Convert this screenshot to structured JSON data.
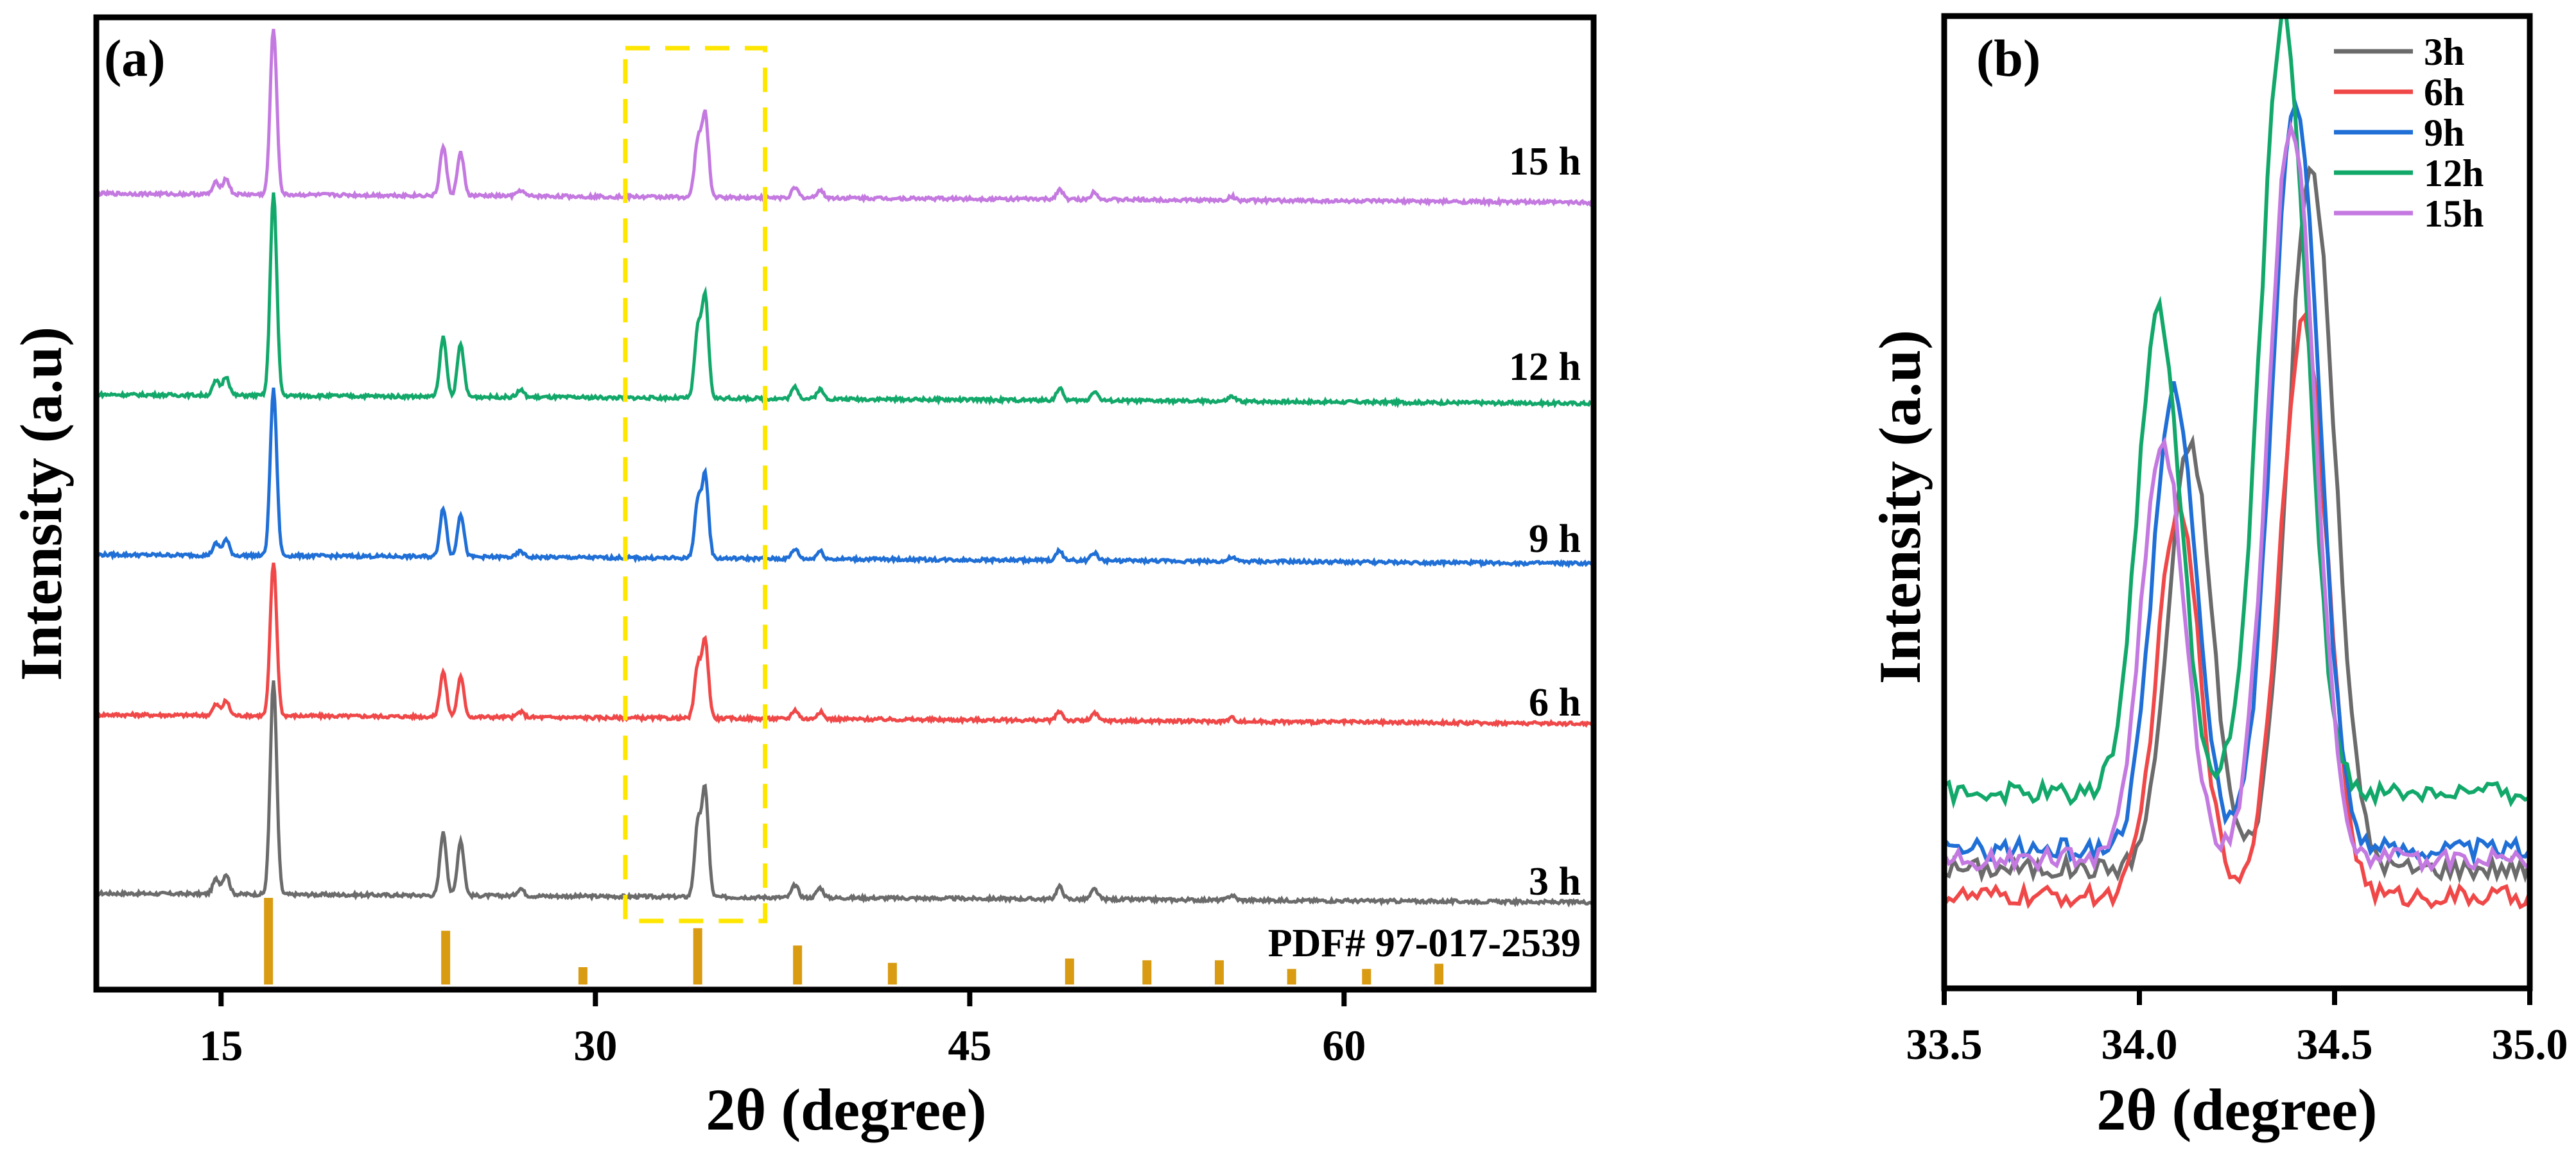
{
  "chart_data": [
    {
      "type": "line",
      "panel_label": "(a)",
      "xlabel": "2θ (degree)",
      "ylabel": "Intensity (a.u)",
      "xlim": [
        10,
        70
      ],
      "x_ticks": [
        "15",
        "30",
        "45",
        "60"
      ],
      "x_tick_values": [
        15,
        30,
        45,
        60
      ],
      "highlight_box_range": [
        31.2,
        36.8
      ],
      "highlight_color": "#ffe600",
      "series": [
        {
          "name": "3 h",
          "color": "#6b6b6b",
          "baseline": 0.0,
          "peak_scale": 1.0
        },
        {
          "name": "6 h",
          "color": "#f04848",
          "baseline": 0.96,
          "peak_scale": 0.72
        },
        {
          "name": "9 h",
          "color": "#1f6fd6",
          "baseline": 1.82,
          "peak_scale": 0.78
        },
        {
          "name": "12 h",
          "color": "#12a86a",
          "baseline": 2.68,
          "peak_scale": 0.95
        },
        {
          "name": "15 h",
          "color": "#c479e0",
          "baseline": 3.76,
          "peak_scale": 0.78
        }
      ],
      "peaks": [
        {
          "x": 14.8,
          "h": 0.06
        },
        {
          "x": 15.2,
          "h": 0.08
        },
        {
          "x": 17.1,
          "h": 0.85
        },
        {
          "x": 23.9,
          "h": 0.25
        },
        {
          "x": 24.6,
          "h": 0.22
        },
        {
          "x": 27.0,
          "h": 0.03
        },
        {
          "x": 34.1,
          "h": 0.28
        },
        {
          "x": 34.4,
          "h": 0.42
        },
        {
          "x": 38.0,
          "h": 0.05
        },
        {
          "x": 39.0,
          "h": 0.04
        },
        {
          "x": 48.6,
          "h": 0.05
        },
        {
          "x": 50.0,
          "h": 0.04
        },
        {
          "x": 55.5,
          "h": 0.02
        }
      ],
      "reference": {
        "label": "PDF# 97-017-2539",
        "color": "#d99b12",
        "sticks": [
          {
            "x": 16.9,
            "h": 1.0
          },
          {
            "x": 24.0,
            "h": 0.62
          },
          {
            "x": 29.5,
            "h": 0.2
          },
          {
            "x": 34.1,
            "h": 0.65
          },
          {
            "x": 38.1,
            "h": 0.45
          },
          {
            "x": 41.9,
            "h": 0.25
          },
          {
            "x": 49.0,
            "h": 0.3
          },
          {
            "x": 52.1,
            "h": 0.28
          },
          {
            "x": 55.0,
            "h": 0.28
          },
          {
            "x": 57.9,
            "h": 0.18
          },
          {
            "x": 60.9,
            "h": 0.18
          },
          {
            "x": 63.8,
            "h": 0.24
          }
        ]
      }
    },
    {
      "type": "line",
      "panel_label": "(b)",
      "xlabel": "2θ (degree)",
      "ylabel": "Intensity (a.u)",
      "xlim": [
        33.5,
        35.0
      ],
      "x_ticks": [
        "33.5",
        "34.0",
        "34.5",
        "35.0"
      ],
      "x_tick_values": [
        33.5,
        34.0,
        34.5,
        35.0
      ],
      "series": [
        {
          "name": "3h",
          "color": "#6b6b6b",
          "base": 0.1,
          "p1": [
            34.13,
            0.55
          ],
          "p2": [
            34.44,
            0.84
          ]
        },
        {
          "name": "6h",
          "color": "#f04848",
          "base": 0.07,
          "p1": [
            34.1,
            0.48
          ],
          "p2": [
            34.42,
            0.68
          ]
        },
        {
          "name": "9h",
          "color": "#1f6fd6",
          "base": 0.12,
          "p1": [
            34.09,
            0.61
          ],
          "p2": [
            34.4,
            0.92
          ]
        },
        {
          "name": "12h",
          "color": "#12a86a",
          "base": 0.18,
          "p1": [
            34.05,
            0.69
          ],
          "p2": [
            34.37,
            1.0
          ]
        },
        {
          "name": "15h",
          "color": "#c479e0",
          "base": 0.11,
          "p1": [
            34.06,
            0.55
          ],
          "p2": [
            34.39,
            0.89
          ]
        }
      ]
    }
  ]
}
